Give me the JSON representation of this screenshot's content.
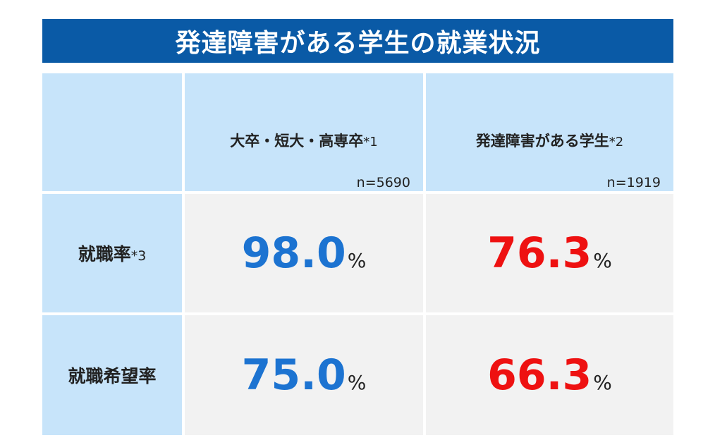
{
  "title": "発達障害がある学生の就業状況",
  "colors": {
    "title_bg": "#0a5aa6",
    "header_bg": "#c7e4fa",
    "cell_bg": "#f2f2f2",
    "blue": "#1c73d1",
    "red": "#ee1111"
  },
  "columns": [
    {
      "label": "大卒・短大・高専卒",
      "note": "*1",
      "n": "n=5690"
    },
    {
      "label": "発達障害がある学生",
      "note": "*2",
      "n": "n=1919"
    }
  ],
  "rows": [
    {
      "label": "就職率",
      "note": "*3",
      "values": [
        "98.0",
        "76.3"
      ],
      "unit": "%"
    },
    {
      "label": "就職希望率",
      "note": "",
      "values": [
        "75.0",
        "66.3"
      ],
      "unit": "%"
    }
  ]
}
